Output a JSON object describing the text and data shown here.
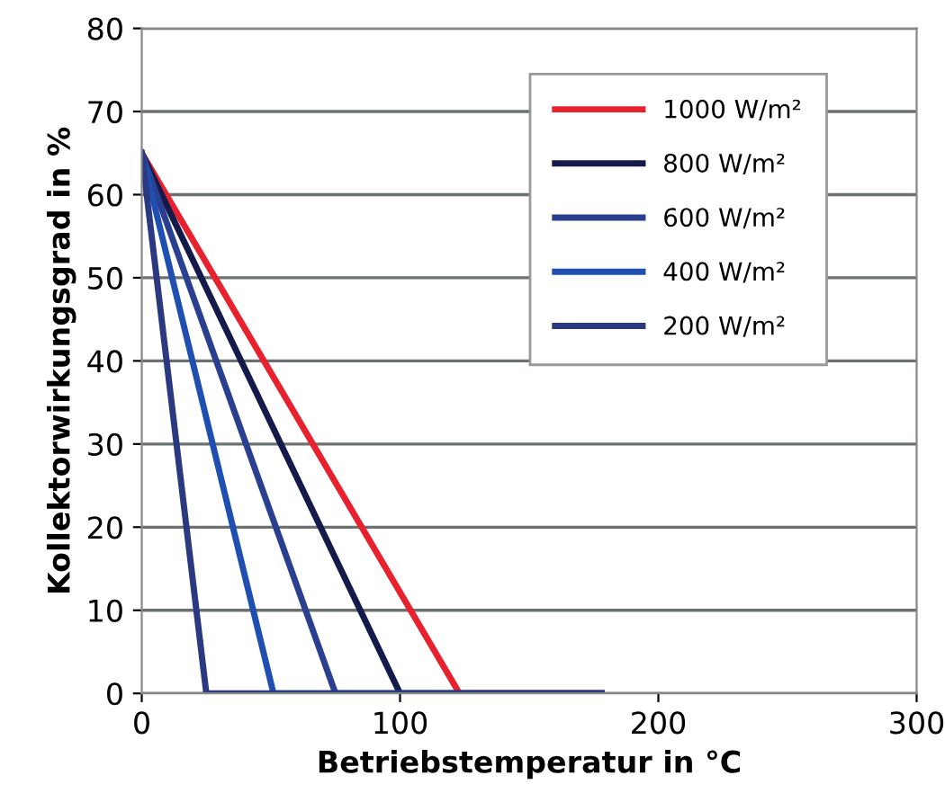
{
  "chart_data": {
    "type": "line",
    "xlabel": "Betriebstemperatur in °C",
    "ylabel": "Kollektorwirkungsgrad in %",
    "xlim": [
      0,
      300
    ],
    "xticks": [
      0,
      100,
      200,
      300
    ],
    "ylim": [
      0,
      80
    ],
    "yticks": [
      0,
      10,
      20,
      30,
      40,
      50,
      60,
      70,
      80
    ],
    "grid": "y",
    "legend": "top right",
    "marker": "none",
    "line_style": "solid",
    "series": [
      {
        "name": "1000 W/m²",
        "color": "#e8212e",
        "x": [
          0,
          123,
          178
        ],
        "values": [
          65,
          0,
          0
        ]
      },
      {
        "name": "800 W/m²",
        "color": "#141a4a",
        "x": [
          0,
          100,
          178
        ],
        "values": [
          65,
          0,
          0
        ]
      },
      {
        "name": "600 W/m²",
        "color": "#2a3f8f",
        "x": [
          0,
          75,
          178
        ],
        "values": [
          65,
          0,
          0
        ]
      },
      {
        "name": "400 W/m²",
        "color": "#1f4fb0",
        "x": [
          0,
          51,
          178
        ],
        "values": [
          65,
          0,
          0
        ]
      },
      {
        "name": "200 W/m²",
        "color": "#2b3a80",
        "x": [
          0,
          25,
          178
        ],
        "values": [
          65,
          0,
          0
        ]
      }
    ]
  }
}
